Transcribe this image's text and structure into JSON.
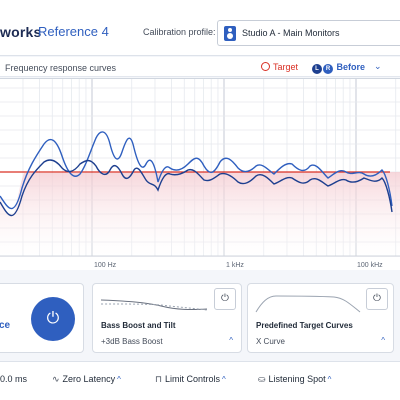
{
  "header": {
    "brand": "works",
    "product": "Reference 4",
    "profile_label": "Calibration profile:",
    "profile_name": "Studio A - Main Monitors"
  },
  "graph": {
    "title": "Frequency response curves",
    "legend": {
      "target_label": "Target",
      "before_label": "Before",
      "left_badge": "L",
      "right_badge": "R"
    },
    "freq_labels": [
      "100 Hz",
      "1 kHz",
      "100 kHz"
    ],
    "colors": {
      "target": "#d93025",
      "left": "#1d3f8f",
      "right": "#2f5fbf"
    }
  },
  "cards": {
    "left": {
      "label": "ce"
    },
    "bass": {
      "title": "Bass Boost and Tilt",
      "value": "+3dB Bass Boost"
    },
    "target": {
      "title": "Predefined Target Curves",
      "value": "X Curve"
    }
  },
  "bottom": {
    "delay": "0.0 ms",
    "latency": "Zero Latency",
    "limit": "Limit Controls",
    "listening": "Listening Spot"
  },
  "icons": {
    "power": "⏻",
    "chevron_down": "⌄",
    "chevron_up": "^"
  }
}
